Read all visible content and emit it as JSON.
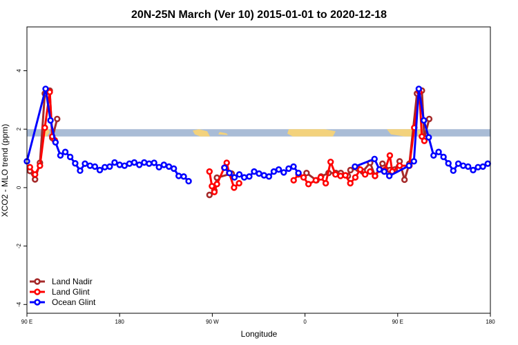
{
  "chart_data": {
    "type": "line",
    "title": "20N-25N March (Ver 10)   2015-01-01 to 2020-12-18",
    "xlabel": "Longitude",
    "ylabel": "XCO2 - MLO trend (ppm)",
    "xlim": [
      90,
      450
    ],
    "ylim": [
      -4.3,
      5.5
    ],
    "x_ticks": [
      {
        "value": 90,
        "label": "90 E"
      },
      {
        "value": 162,
        "label": "180"
      },
      {
        "value": 234,
        "label": "90 W"
      },
      {
        "value": 306,
        "label": "0"
      },
      {
        "value": 378,
        "label": "90 E"
      },
      {
        "value": 450,
        "label": "180"
      }
    ],
    "y_ticks": [
      {
        "value": -4,
        "label": "-4"
      },
      {
        "value": -2,
        "label": "-2"
      },
      {
        "value": 0,
        "label": "0"
      },
      {
        "value": 2,
        "label": "2"
      },
      {
        "value": 4,
        "label": "4"
      }
    ],
    "land_mask_band": {
      "y_min": 1.75,
      "y_max": 2.0,
      "ocean_color": "#a9bcd6",
      "land_color": "#f3d27c"
    },
    "legend_position": "bottom-left",
    "series": [
      {
        "name": "Land Nadir",
        "color": "#a52a2a",
        "points": [
          [
            92.3,
            0.57
          ],
          [
            96.3,
            0.28
          ],
          [
            100.1,
            0.85
          ],
          [
            103.9,
            3.22
          ],
          [
            107.7,
            3.32
          ],
          [
            109.7,
            1.7
          ],
          [
            113.5,
            2.35
          ],
          [
            231.8,
            -0.25
          ],
          [
            235.6,
            -0.1
          ],
          [
            237.6,
            0.34
          ],
          [
            249,
            0.48
          ],
          [
            307.2,
            0.5
          ],
          [
            314.9,
            0.25
          ],
          [
            318.5,
            0.38
          ],
          [
            324.3,
            0.5
          ],
          [
            330,
            0.5
          ],
          [
            333.8,
            0.5
          ],
          [
            339.3,
            0.4
          ],
          [
            341.3,
            0.6
          ],
          [
            347.1,
            0.65
          ],
          [
            350.9,
            0.55
          ],
          [
            356.6,
            0.85
          ],
          [
            360.4,
            0.4
          ],
          [
            366.2,
            0.82
          ],
          [
            371.9,
            0.6
          ],
          [
            375.7,
            0.62
          ],
          [
            379.5,
            0.9
          ],
          [
            383.3,
            0.27
          ],
          [
            387.1,
            0.82
          ],
          [
            393,
            3.22
          ],
          [
            396.8,
            3.32
          ],
          [
            398.7,
            1.7
          ],
          [
            402.5,
            2.35
          ]
        ]
      },
      {
        "name": "Land Glint",
        "color": "#ff0000",
        "points": [
          [
            92.3,
            0.7
          ],
          [
            96.3,
            0.45
          ],
          [
            100.1,
            0.75
          ],
          [
            103.9,
            2.05
          ],
          [
            107.7,
            3.27
          ],
          [
            109.7,
            1.75
          ],
          [
            111.6,
            1.62
          ],
          [
            231.8,
            0.55
          ],
          [
            233.7,
            0.05
          ],
          [
            235.6,
            -0.15
          ],
          [
            237.6,
            0.12
          ],
          [
            243.3,
            0.68
          ],
          [
            245.2,
            0.85
          ],
          [
            247.1,
            0.5
          ],
          [
            250.9,
            0.0
          ],
          [
            254.8,
            0.15
          ],
          [
            297.2,
            0.25
          ],
          [
            301,
            0.45
          ],
          [
            304.9,
            0.35
          ],
          [
            308.7,
            0.12
          ],
          [
            314.4,
            0.25
          ],
          [
            318.2,
            0.35
          ],
          [
            322.1,
            0.15
          ],
          [
            325.9,
            0.88
          ],
          [
            329.7,
            0.45
          ],
          [
            333.6,
            0.4
          ],
          [
            337.4,
            0.42
          ],
          [
            341.2,
            0.15
          ],
          [
            345.1,
            0.35
          ],
          [
            348.9,
            0.62
          ],
          [
            352.7,
            0.45
          ],
          [
            356.6,
            0.55
          ],
          [
            360.4,
            0.4
          ],
          [
            364.2,
            0.62
          ],
          [
            368.1,
            0.6
          ],
          [
            371.9,
            1.1
          ],
          [
            373.8,
            0.55
          ],
          [
            379.5,
            0.75
          ],
          [
            387.1,
            0.75
          ],
          [
            390.9,
            2.05
          ],
          [
            394.8,
            3.27
          ],
          [
            396.8,
            1.75
          ],
          [
            398.7,
            1.6
          ]
        ]
      },
      {
        "name": "Ocean Glint",
        "color": "#0000ff",
        "points": [
          [
            90,
            0.9
          ],
          [
            104.5,
            3.38
          ],
          [
            108.3,
            2.3
          ],
          [
            112.2,
            1.55
          ],
          [
            116,
            1.1
          ],
          [
            119.8,
            1.22
          ],
          [
            123.6,
            1.05
          ],
          [
            127.5,
            0.83
          ],
          [
            131.3,
            0.58
          ],
          [
            135.1,
            0.82
          ],
          [
            139,
            0.75
          ],
          [
            142.8,
            0.72
          ],
          [
            146.6,
            0.6
          ],
          [
            150.5,
            0.7
          ],
          [
            154.3,
            0.72
          ],
          [
            158.1,
            0.86
          ],
          [
            162,
            0.78
          ],
          [
            165.8,
            0.75
          ],
          [
            169.6,
            0.82
          ],
          [
            173.4,
            0.86
          ],
          [
            177.3,
            0.78
          ],
          [
            181.1,
            0.86
          ],
          [
            184.9,
            0.82
          ],
          [
            188.8,
            0.85
          ],
          [
            192.6,
            0.7
          ],
          [
            196.4,
            0.78
          ],
          [
            200.3,
            0.72
          ],
          [
            204.1,
            0.65
          ],
          [
            207.9,
            0.4
          ],
          [
            211.8,
            0.38
          ],
          [
            215.6,
            0.22
          ],
          [
            243.5,
            0.68
          ],
          [
            247.3,
            0.5
          ],
          [
            251.2,
            0.35
          ],
          [
            255,
            0.45
          ],
          [
            258.8,
            0.35
          ],
          [
            262.7,
            0.38
          ],
          [
            266.5,
            0.55
          ],
          [
            270.3,
            0.48
          ],
          [
            274.2,
            0.42
          ],
          [
            278,
            0.38
          ],
          [
            281.8,
            0.55
          ],
          [
            285.6,
            0.62
          ],
          [
            289.5,
            0.52
          ],
          [
            293.3,
            0.65
          ],
          [
            297.1,
            0.72
          ],
          [
            300.9,
            0.5
          ],
          [
            344.8,
            0.72
          ],
          [
            360,
            0.98
          ],
          [
            363.8,
            0.62
          ],
          [
            367.6,
            0.55
          ],
          [
            371.5,
            0.4
          ],
          [
            386.8,
            0.75
          ],
          [
            390.6,
            0.9
          ],
          [
            394.4,
            3.38
          ],
          [
            398.3,
            2.3
          ],
          [
            402.1,
            1.72
          ],
          [
            405.9,
            1.1
          ],
          [
            409.8,
            1.22
          ],
          [
            413.6,
            1.05
          ],
          [
            417.4,
            0.83
          ],
          [
            421.2,
            0.58
          ],
          [
            425.1,
            0.82
          ],
          [
            428.9,
            0.75
          ],
          [
            432.7,
            0.72
          ],
          [
            436.6,
            0.6
          ],
          [
            440.4,
            0.7
          ],
          [
            444.2,
            0.72
          ],
          [
            448,
            0.82
          ]
        ]
      }
    ]
  }
}
